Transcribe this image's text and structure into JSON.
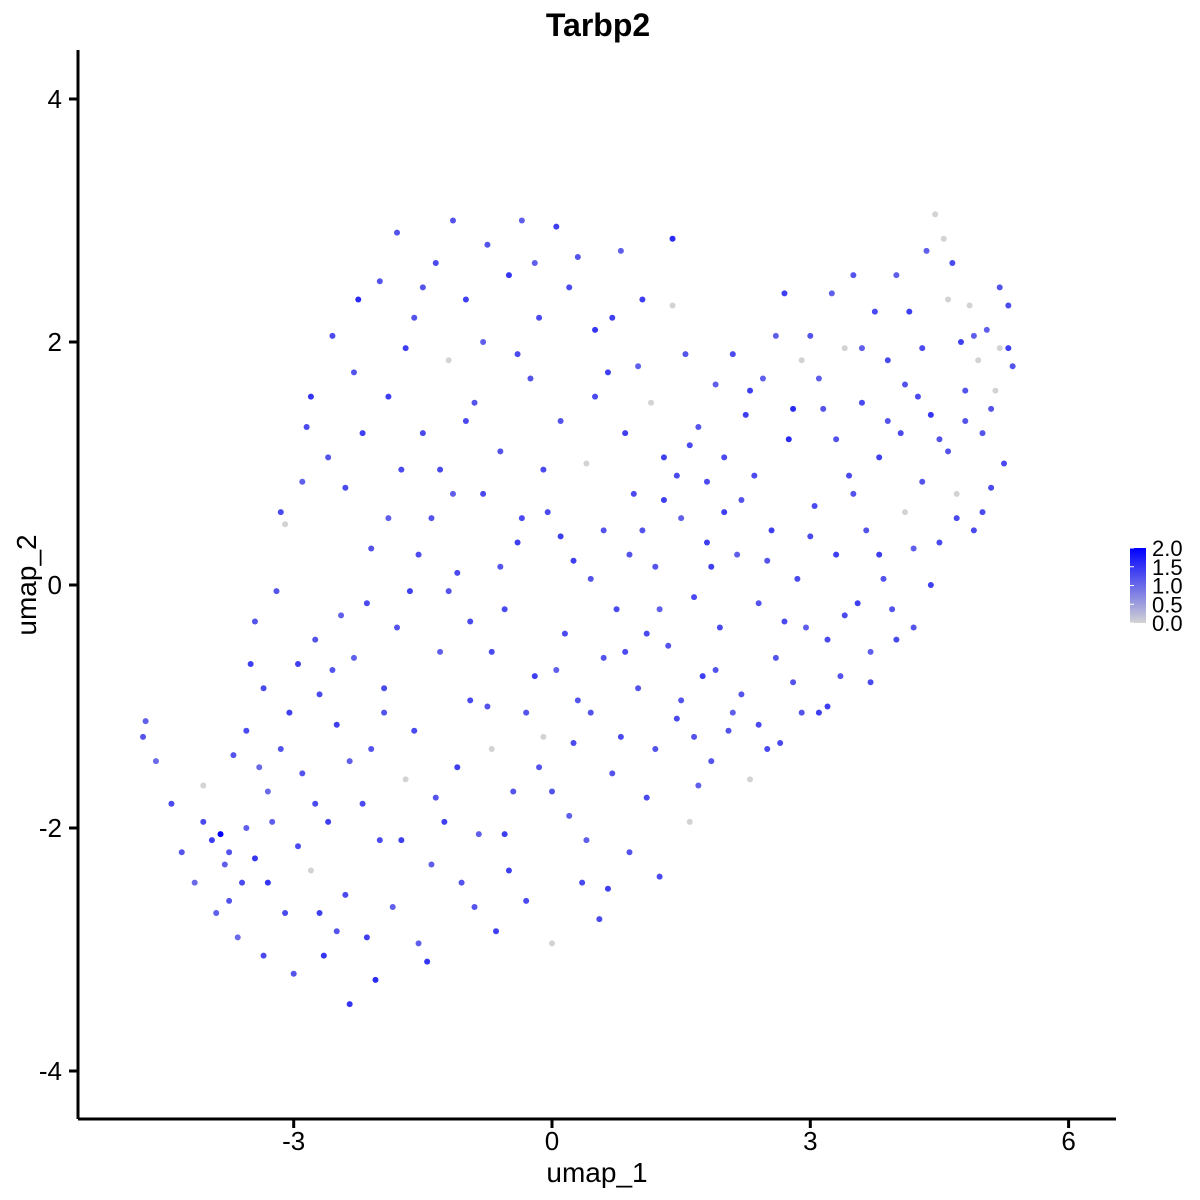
{
  "chart_data": {
    "type": "scatter",
    "title": "Tarbp2",
    "xlabel": "umap_1",
    "ylabel": "umap_2",
    "xlim": [
      -5.0,
      6.2
    ],
    "ylim": [
      -4.3,
      4.4
    ],
    "x_ticks": [
      -3,
      0,
      3,
      6
    ],
    "y_ticks": [
      4,
      2,
      0,
      -2,
      -4
    ],
    "x_tick_labels": [
      "-3",
      "0",
      "3",
      "6"
    ],
    "y_tick_labels": [
      "4",
      "2",
      "0",
      "-2",
      "-4"
    ],
    "grid": false,
    "legend": {
      "placement": "right",
      "kind": "colorbar",
      "range": [
        0.0,
        2.0
      ],
      "ticks": [
        2.0,
        1.5,
        1.0,
        0.5,
        0.0
      ],
      "tick_labels": [
        "2.0",
        "1.5",
        "1.0",
        "0.5",
        "0.0"
      ]
    },
    "color_low": "#d3d3d3",
    "color_high": "#0000ff",
    "point_color": "gradient from #d3d3d3 (0.0) to #0000ff (2.0) by expression",
    "points": [
      [
        -4.75,
        -1.25,
        1.2
      ],
      [
        -4.72,
        -1.12,
        1.1
      ],
      [
        -4.6,
        -1.45,
        1.0
      ],
      [
        -4.42,
        -1.8,
        1.3
      ],
      [
        -4.3,
        -2.2,
        1.2
      ],
      [
        -4.15,
        -2.45,
        1.0
      ],
      [
        -4.05,
        -1.65,
        0.0
      ],
      [
        -3.95,
        -2.1,
        1.4
      ],
      [
        -3.85,
        -2.05,
        2.0
      ],
      [
        -3.8,
        -2.3,
        1.1
      ],
      [
        -3.75,
        -2.6,
        1.2
      ],
      [
        -3.65,
        -2.9,
        1.0
      ],
      [
        -3.55,
        -1.2,
        1.3
      ],
      [
        -3.5,
        -0.65,
        1.4
      ],
      [
        -3.45,
        -0.3,
        1.2
      ],
      [
        -3.4,
        -1.5,
        1.0
      ],
      [
        -3.35,
        -3.05,
        1.3
      ],
      [
        -3.3,
        -2.45,
        1.5
      ],
      [
        -3.25,
        -1.95,
        1.1
      ],
      [
        -3.2,
        -0.05,
        1.2
      ],
      [
        -3.15,
        0.6,
        1.3
      ],
      [
        -3.1,
        0.5,
        0.0
      ],
      [
        -3.05,
        -1.05,
        1.4
      ],
      [
        -3.0,
        -3.2,
        1.2
      ],
      [
        -2.95,
        -2.15,
        1.3
      ],
      [
        -2.9,
        0.85,
        1.1
      ],
      [
        -2.85,
        1.3,
        1.3
      ],
      [
        -2.8,
        1.55,
        1.5
      ],
      [
        -2.75,
        -0.45,
        1.2
      ],
      [
        -2.7,
        -2.7,
        1.4
      ],
      [
        -2.65,
        -3.05,
        1.5
      ],
      [
        -2.6,
        1.05,
        1.2
      ],
      [
        -2.55,
        2.05,
        1.3
      ],
      [
        -2.5,
        -1.15,
        1.4
      ],
      [
        -2.45,
        -0.25,
        1.1
      ],
      [
        -2.4,
        -2.55,
        1.3
      ],
      [
        -2.35,
        -3.45,
        1.5
      ],
      [
        -2.3,
        1.75,
        1.2
      ],
      [
        -2.25,
        2.35,
        1.6
      ],
      [
        -2.2,
        -1.8,
        1.3
      ],
      [
        -2.15,
        -2.9,
        1.4
      ],
      [
        -2.1,
        0.3,
        1.2
      ],
      [
        -2.05,
        -3.25,
        1.6
      ],
      [
        -2.0,
        2.5,
        1.2
      ],
      [
        -1.95,
        -0.85,
        1.3
      ],
      [
        -1.9,
        1.55,
        1.4
      ],
      [
        -1.85,
        -2.65,
        1.1
      ],
      [
        -1.8,
        2.9,
        1.2
      ],
      [
        -1.75,
        0.95,
        1.3
      ],
      [
        -1.7,
        -1.6,
        0.0
      ],
      [
        -1.65,
        -0.05,
        1.4
      ],
      [
        -1.6,
        2.2,
        1.2
      ],
      [
        -1.55,
        -2.95,
        1.1
      ],
      [
        -1.5,
        1.25,
        1.3
      ],
      [
        -1.45,
        -3.1,
        1.5
      ],
      [
        -1.4,
        0.55,
        1.2
      ],
      [
        -1.35,
        2.65,
        1.3
      ],
      [
        -1.3,
        -0.55,
        1.1
      ],
      [
        -1.25,
        -1.95,
        1.4
      ],
      [
        -1.2,
        1.85,
        0.0
      ],
      [
        -1.15,
        3.0,
        1.2
      ],
      [
        -1.1,
        0.1,
        1.3
      ],
      [
        -1.05,
        -2.45,
        1.2
      ],
      [
        -1.0,
        2.35,
        1.4
      ],
      [
        -0.95,
        -0.95,
        1.3
      ],
      [
        -0.9,
        1.5,
        1.2
      ],
      [
        -0.85,
        -2.05,
        1.1
      ],
      [
        -0.8,
        0.75,
        1.3
      ],
      [
        -0.75,
        2.8,
        1.2
      ],
      [
        -0.7,
        -1.35,
        0.0
      ],
      [
        -0.65,
        -2.85,
        1.4
      ],
      [
        -0.6,
        1.1,
        1.2
      ],
      [
        -0.55,
        -0.2,
        1.3
      ],
      [
        -0.5,
        2.55,
        1.5
      ],
      [
        -0.45,
        -1.7,
        1.2
      ],
      [
        -0.4,
        0.35,
        1.4
      ],
      [
        -0.35,
        3.0,
        1.1
      ],
      [
        -0.3,
        -2.6,
        1.3
      ],
      [
        -0.25,
        1.7,
        1.2
      ],
      [
        -0.2,
        -0.75,
        1.4
      ],
      [
        -0.15,
        2.2,
        1.3
      ],
      [
        -0.1,
        -1.25,
        0.0
      ],
      [
        -0.05,
        0.6,
        1.3
      ],
      [
        0.0,
        -2.95,
        0.0
      ],
      [
        0.05,
        2.95,
        1.4
      ],
      [
        0.1,
        1.35,
        1.2
      ],
      [
        0.15,
        -0.4,
        1.3
      ],
      [
        0.2,
        -1.9,
        1.1
      ],
      [
        0.25,
        0.2,
        1.4
      ],
      [
        0.3,
        2.7,
        1.2
      ],
      [
        0.35,
        -2.45,
        1.3
      ],
      [
        0.4,
        1.0,
        0.0
      ],
      [
        0.45,
        -1.05,
        1.2
      ],
      [
        0.5,
        2.1,
        1.5
      ],
      [
        0.55,
        -2.75,
        1.3
      ],
      [
        0.6,
        0.45,
        1.2
      ],
      [
        0.65,
        1.75,
        1.4
      ],
      [
        0.7,
        -1.55,
        1.2
      ],
      [
        0.75,
        -0.2,
        1.3
      ],
      [
        0.8,
        2.75,
        1.1
      ],
      [
        0.85,
        1.25,
        1.4
      ],
      [
        0.9,
        -2.2,
        1.2
      ],
      [
        0.95,
        0.75,
        1.3
      ],
      [
        1.0,
        -0.85,
        1.2
      ],
      [
        1.05,
        2.35,
        1.4
      ],
      [
        1.1,
        -1.75,
        1.3
      ],
      [
        1.15,
        1.5,
        0.0
      ],
      [
        1.2,
        0.15,
        1.2
      ],
      [
        1.25,
        -2.4,
        1.3
      ],
      [
        1.3,
        1.05,
        1.4
      ],
      [
        1.35,
        -0.5,
        1.2
      ],
      [
        1.4,
        2.85,
        1.6
      ],
      [
        1.45,
        -1.1,
        1.3
      ],
      [
        1.5,
        0.55,
        1.1
      ],
      [
        1.55,
        1.9,
        1.2
      ],
      [
        1.6,
        -1.95,
        0.0
      ],
      [
        1.65,
        -0.1,
        1.3
      ],
      [
        1.7,
        1.3,
        1.2
      ],
      [
        1.75,
        -0.75,
        1.4
      ],
      [
        1.8,
        0.85,
        1.3
      ],
      [
        1.85,
        -1.45,
        1.2
      ],
      [
        1.9,
        1.65,
        1.1
      ],
      [
        1.95,
        -0.35,
        1.3
      ],
      [
        2.0,
        0.6,
        1.4
      ],
      [
        2.05,
        -1.2,
        1.2
      ],
      [
        2.1,
        1.9,
        1.3
      ],
      [
        2.15,
        0.25,
        1.1
      ],
      [
        2.2,
        -0.9,
        1.2
      ],
      [
        2.25,
        1.4,
        1.4
      ],
      [
        2.3,
        -1.6,
        0.0
      ],
      [
        2.35,
        0.9,
        1.3
      ],
      [
        2.4,
        -0.15,
        1.2
      ],
      [
        2.45,
        1.7,
        1.1
      ],
      [
        2.5,
        -1.35,
        1.3
      ],
      [
        2.55,
        0.45,
        1.4
      ],
      [
        2.6,
        -0.6,
        1.2
      ],
      [
        2.65,
        -1.3,
        1.3
      ],
      [
        2.7,
        2.4,
        1.4
      ],
      [
        2.75,
        1.2,
        1.6
      ],
      [
        2.8,
        -0.8,
        1.2
      ],
      [
        2.85,
        0.05,
        1.3
      ],
      [
        2.9,
        1.85,
        0.0
      ],
      [
        2.95,
        -0.35,
        1.1
      ],
      [
        3.0,
        2.05,
        1.2
      ],
      [
        3.05,
        0.65,
        1.3
      ],
      [
        3.1,
        -1.05,
        1.4
      ],
      [
        3.15,
        1.45,
        1.2
      ],
      [
        3.2,
        -0.45,
        1.3
      ],
      [
        3.25,
        2.4,
        1.1
      ],
      [
        3.3,
        0.25,
        1.4
      ],
      [
        3.35,
        -0.75,
        1.2
      ],
      [
        3.4,
        1.95,
        0.0
      ],
      [
        3.45,
        0.9,
        1.3
      ],
      [
        3.5,
        2.55,
        1.2
      ],
      [
        3.55,
        -0.15,
        1.4
      ],
      [
        3.6,
        1.5,
        1.3
      ],
      [
        3.65,
        0.45,
        1.2
      ],
      [
        3.7,
        -0.55,
        1.1
      ],
      [
        3.75,
        2.25,
        1.3
      ],
      [
        3.8,
        1.05,
        1.4
      ],
      [
        3.85,
        0.05,
        1.2
      ],
      [
        3.9,
        1.85,
        1.3
      ],
      [
        3.95,
        -0.2,
        1.2
      ],
      [
        4.0,
        2.55,
        1.1
      ],
      [
        4.05,
        1.25,
        1.3
      ],
      [
        4.1,
        0.6,
        0.0
      ],
      [
        4.15,
        2.25,
        1.4
      ],
      [
        4.2,
        -0.35,
        1.2
      ],
      [
        4.25,
        1.55,
        1.3
      ],
      [
        4.3,
        0.85,
        1.2
      ],
      [
        4.35,
        2.75,
        1.1
      ],
      [
        4.4,
        1.4,
        1.5
      ],
      [
        4.45,
        3.05,
        0.0
      ],
      [
        4.5,
        0.35,
        1.3
      ],
      [
        4.55,
        2.85,
        0.0
      ],
      [
        4.6,
        1.1,
        1.2
      ],
      [
        4.65,
        2.65,
        1.3
      ],
      [
        4.7,
        0.75,
        0.0
      ],
      [
        4.75,
        2.0,
        1.4
      ],
      [
        4.8,
        1.6,
        1.2
      ],
      [
        4.85,
        2.3,
        0.0
      ],
      [
        4.9,
        0.45,
        1.3
      ],
      [
        4.95,
        1.85,
        0.0
      ],
      [
        5.0,
        1.25,
        1.2
      ],
      [
        5.05,
        2.1,
        1.1
      ],
      [
        5.1,
        0.8,
        1.3
      ],
      [
        5.15,
        1.6,
        0.0
      ],
      [
        5.2,
        2.45,
        1.2
      ],
      [
        5.25,
        1.0,
        1.3
      ],
      [
        5.3,
        1.95,
        1.4
      ],
      [
        -3.9,
        -2.7,
        1.1
      ],
      [
        -3.7,
        -1.4,
        1.2
      ],
      [
        -3.6,
        -2.45,
        1.3
      ],
      [
        -3.45,
        -2.25,
        1.5
      ],
      [
        -3.3,
        -1.7,
        1.0
      ],
      [
        -3.1,
        -2.7,
        1.3
      ],
      [
        -2.9,
        -1.55,
        1.2
      ],
      [
        -2.8,
        -2.35,
        0.0
      ],
      [
        -2.7,
        -0.9,
        1.3
      ],
      [
        -2.6,
        -1.95,
        1.4
      ],
      [
        -2.5,
        -2.85,
        1.2
      ],
      [
        -2.4,
        0.8,
        1.3
      ],
      [
        -2.3,
        -0.6,
        1.1
      ],
      [
        -2.2,
        1.25,
        1.4
      ],
      [
        -2.1,
        -1.35,
        1.2
      ],
      [
        -2.0,
        -2.1,
        1.3
      ],
      [
        -1.9,
        0.55,
        1.1
      ],
      [
        -1.8,
        -0.35,
        1.2
      ],
      [
        -1.7,
        1.95,
        1.4
      ],
      [
        -1.6,
        -1.2,
        1.3
      ],
      [
        -1.5,
        2.45,
        1.2
      ],
      [
        -1.4,
        -2.3,
        1.1
      ],
      [
        -1.3,
        0.95,
        1.3
      ],
      [
        -1.2,
        -0.05,
        1.2
      ],
      [
        -1.1,
        -1.5,
        1.4
      ],
      [
        -1.0,
        1.35,
        1.3
      ],
      [
        -0.9,
        -2.65,
        1.2
      ],
      [
        -0.8,
        2.0,
        1.1
      ],
      [
        -0.7,
        -0.55,
        1.3
      ],
      [
        -0.6,
        0.15,
        1.2
      ],
      [
        -0.5,
        -2.35,
        1.4
      ],
      [
        -0.4,
        1.9,
        1.3
      ],
      [
        -0.3,
        -1.05,
        1.2
      ],
      [
        -0.2,
        2.65,
        1.1
      ],
      [
        -0.1,
        0.95,
        1.3
      ],
      [
        0.0,
        -1.7,
        1.2
      ],
      [
        0.1,
        0.4,
        1.4
      ],
      [
        0.2,
        2.45,
        1.3
      ],
      [
        0.3,
        -0.95,
        1.2
      ],
      [
        0.4,
        -2.1,
        1.1
      ],
      [
        0.5,
        1.55,
        1.3
      ],
      [
        0.6,
        -0.6,
        1.2
      ],
      [
        0.7,
        2.2,
        1.4
      ],
      [
        0.8,
        -1.25,
        1.3
      ],
      [
        0.9,
        0.25,
        1.2
      ],
      [
        1.0,
        1.8,
        1.1
      ],
      [
        1.1,
        -0.4,
        1.3
      ],
      [
        1.2,
        -1.35,
        1.2
      ],
      [
        1.3,
        0.7,
        1.4
      ],
      [
        1.4,
        2.3,
        0.0
      ],
      [
        1.5,
        -0.95,
        1.2
      ],
      [
        1.6,
        1.15,
        1.3
      ],
      [
        1.7,
        -1.65,
        1.1
      ],
      [
        1.8,
        0.35,
        1.4
      ],
      [
        1.9,
        -0.7,
        1.2
      ],
      [
        2.0,
        1.05,
        1.3
      ],
      [
        2.1,
        -1.05,
        1.1
      ],
      [
        2.2,
        0.7,
        1.2
      ],
      [
        2.3,
        1.6,
        1.4
      ],
      [
        2.4,
        -1.15,
        1.3
      ],
      [
        2.5,
        0.2,
        1.2
      ],
      [
        2.6,
        2.05,
        1.1
      ],
      [
        2.7,
        -0.3,
        1.3
      ],
      [
        2.8,
        1.45,
        1.6
      ],
      [
        2.9,
        -1.05,
        1.2
      ],
      [
        3.0,
        0.4,
        1.3
      ],
      [
        3.1,
        1.7,
        1.1
      ],
      [
        3.2,
        -1.0,
        1.4
      ],
      [
        3.3,
        1.2,
        1.2
      ],
      [
        3.4,
        -0.25,
        1.3
      ],
      [
        3.5,
        0.75,
        1.2
      ],
      [
        3.6,
        1.95,
        1.1
      ],
      [
        3.7,
        -0.8,
        1.3
      ],
      [
        3.8,
        0.25,
        1.4
      ],
      [
        3.9,
        1.35,
        1.2
      ],
      [
        4.0,
        -0.45,
        1.3
      ],
      [
        4.1,
        1.65,
        1.2
      ],
      [
        4.2,
        0.3,
        1.1
      ],
      [
        4.3,
        1.95,
        1.3
      ],
      [
        4.4,
        0.0,
        1.4
      ],
      [
        4.5,
        1.2,
        1.2
      ],
      [
        4.6,
        2.35,
        0.0
      ],
      [
        4.7,
        0.55,
        1.3
      ],
      [
        4.8,
        1.35,
        1.2
      ],
      [
        4.9,
        2.05,
        1.1
      ],
      [
        5.0,
        0.6,
        1.3
      ],
      [
        5.1,
        1.45,
        1.2
      ],
      [
        5.2,
        1.95,
        0.0
      ],
      [
        5.3,
        2.3,
        1.3
      ],
      [
        5.35,
        1.8,
        1.2
      ],
      [
        -4.05,
        -1.95,
        1.3
      ],
      [
        -3.75,
        -2.2,
        1.2
      ],
      [
        -3.55,
        -2.0,
        1.1
      ],
      [
        -3.35,
        -0.85,
        1.3
      ],
      [
        -3.15,
        -1.35,
        1.2
      ],
      [
        -2.95,
        -0.65,
        1.4
      ],
      [
        -2.75,
        -1.8,
        1.3
      ],
      [
        -2.55,
        -0.7,
        1.2
      ],
      [
        -2.35,
        -1.45,
        1.1
      ],
      [
        -2.15,
        -0.15,
        1.3
      ],
      [
        -1.95,
        -1.05,
        1.2
      ],
      [
        -1.75,
        -2.1,
        1.4
      ],
      [
        -1.55,
        0.25,
        1.3
      ],
      [
        -1.35,
        -1.75,
        1.2
      ],
      [
        -1.15,
        0.75,
        1.1
      ],
      [
        -0.95,
        -0.3,
        1.3
      ],
      [
        -0.75,
        -1.0,
        1.2
      ],
      [
        -0.55,
        -2.05,
        1.4
      ],
      [
        -0.35,
        0.55,
        1.3
      ],
      [
        -0.15,
        -1.5,
        1.2
      ],
      [
        0.05,
        -0.7,
        1.1
      ],
      [
        0.25,
        -1.3,
        1.3
      ],
      [
        0.45,
        0.05,
        1.2
      ],
      [
        0.65,
        -2.5,
        1.4
      ],
      [
        0.85,
        -0.55,
        1.3
      ],
      [
        1.05,
        0.45,
        1.2
      ],
      [
        1.25,
        -0.2,
        1.1
      ],
      [
        1.45,
        0.9,
        1.3
      ],
      [
        1.65,
        -1.25,
        1.2
      ],
      [
        1.85,
        0.15,
        1.4
      ]
    ]
  }
}
